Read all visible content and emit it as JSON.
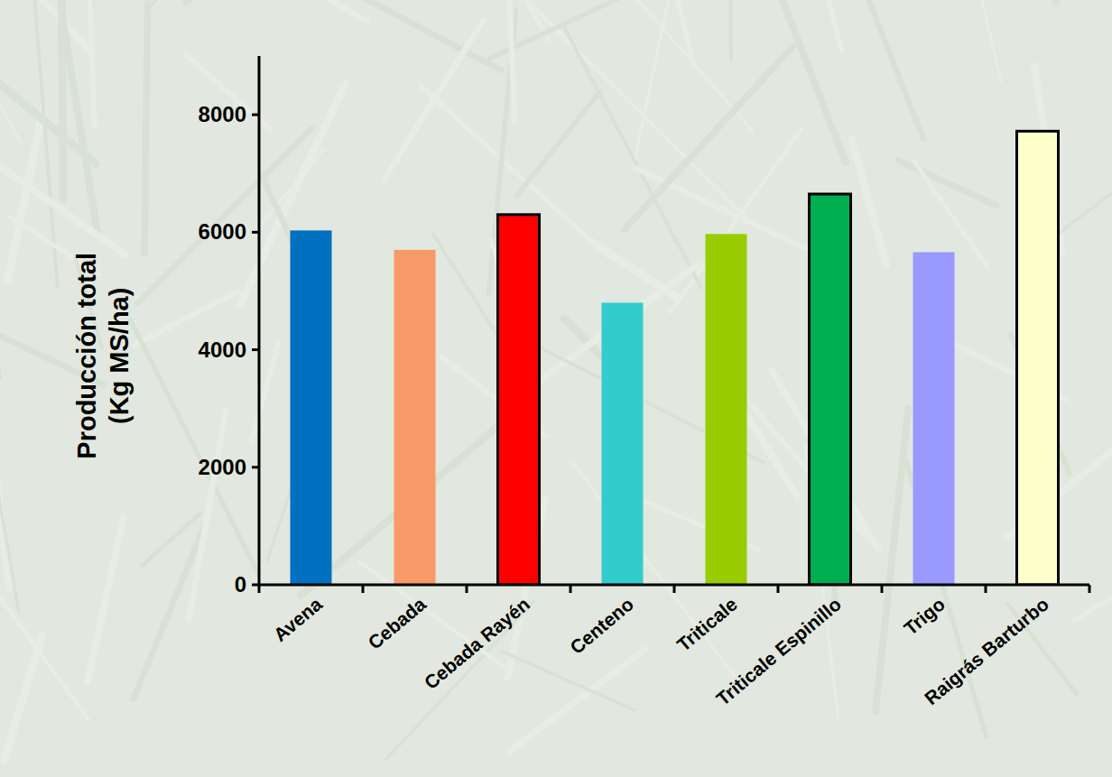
{
  "chart_data": {
    "type": "bar",
    "y_label": "Producción total (Kg MS/ha)",
    "categories": [
      "Avena",
      "Cebada",
      "Cebada Rayén",
      "Centeno",
      "Triticale",
      "Triticale Espinillo",
      "Trigo",
      "Raigrás Barturbo"
    ],
    "values": [
      6030,
      5700,
      6300,
      4800,
      5970,
      6650,
      5660,
      7720
    ],
    "colors": [
      "#0070c0",
      "#f79a68",
      "#ff0000",
      "#33cccc",
      "#99cc00",
      "#00b050",
      "#9999ff",
      "#ffffcc"
    ],
    "ylim": [
      0,
      9000
    ],
    "yticks": [
      0,
      2000,
      4000,
      6000,
      8000
    ],
    "grid": false
  }
}
